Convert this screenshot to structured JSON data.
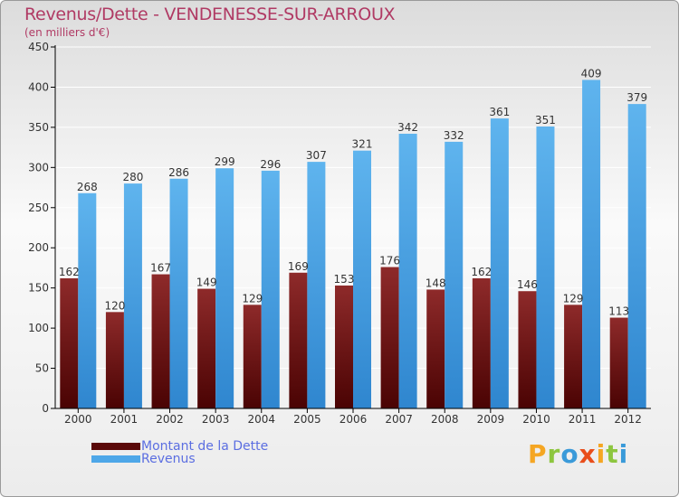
{
  "header": {
    "title": "Revenus/Dette - VENDENESSE-SUR-ARROUX",
    "subtitle": "(en milliers d'€)"
  },
  "colors": {
    "series": [
      "#7a1414",
      "#4ea7e8"
    ],
    "axis": "#000000",
    "grid": "#ffffff"
  },
  "chart_data": {
    "type": "bar",
    "title": "Revenus/Dette - VENDENESSE-SUR-ARROUX",
    "ylabel": "(en milliers d'€)",
    "xlabel": "",
    "ylim": [
      0,
      450
    ],
    "yticks": [
      0,
      50,
      100,
      150,
      200,
      250,
      300,
      350,
      400,
      450
    ],
    "categories": [
      "2000",
      "2001",
      "2002",
      "2003",
      "2004",
      "2005",
      "2006",
      "2007",
      "2008",
      "2009",
      "2010",
      "2011",
      "2012"
    ],
    "series": [
      {
        "name": "Montant de la Dette",
        "values": [
          162,
          120,
          167,
          149,
          129,
          169,
          153,
          176,
          148,
          162,
          146,
          129,
          113
        ]
      },
      {
        "name": "Revenus",
        "values": [
          268,
          280,
          286,
          299,
          296,
          307,
          321,
          342,
          332,
          361,
          351,
          409,
          379
        ]
      }
    ],
    "legend_position": "bottom-left"
  },
  "legend": {
    "items": [
      {
        "label": "Montant de la Dette"
      },
      {
        "label": "Revenus"
      }
    ]
  },
  "brand": {
    "letters": [
      "P",
      "r",
      "o",
      "x",
      "i",
      "t",
      "i"
    ],
    "colors": [
      "#f5a623",
      "#8dc63f",
      "#3a9ad9",
      "#e94e1b",
      "#f5a623",
      "#8dc63f",
      "#3a9ad9"
    ]
  }
}
